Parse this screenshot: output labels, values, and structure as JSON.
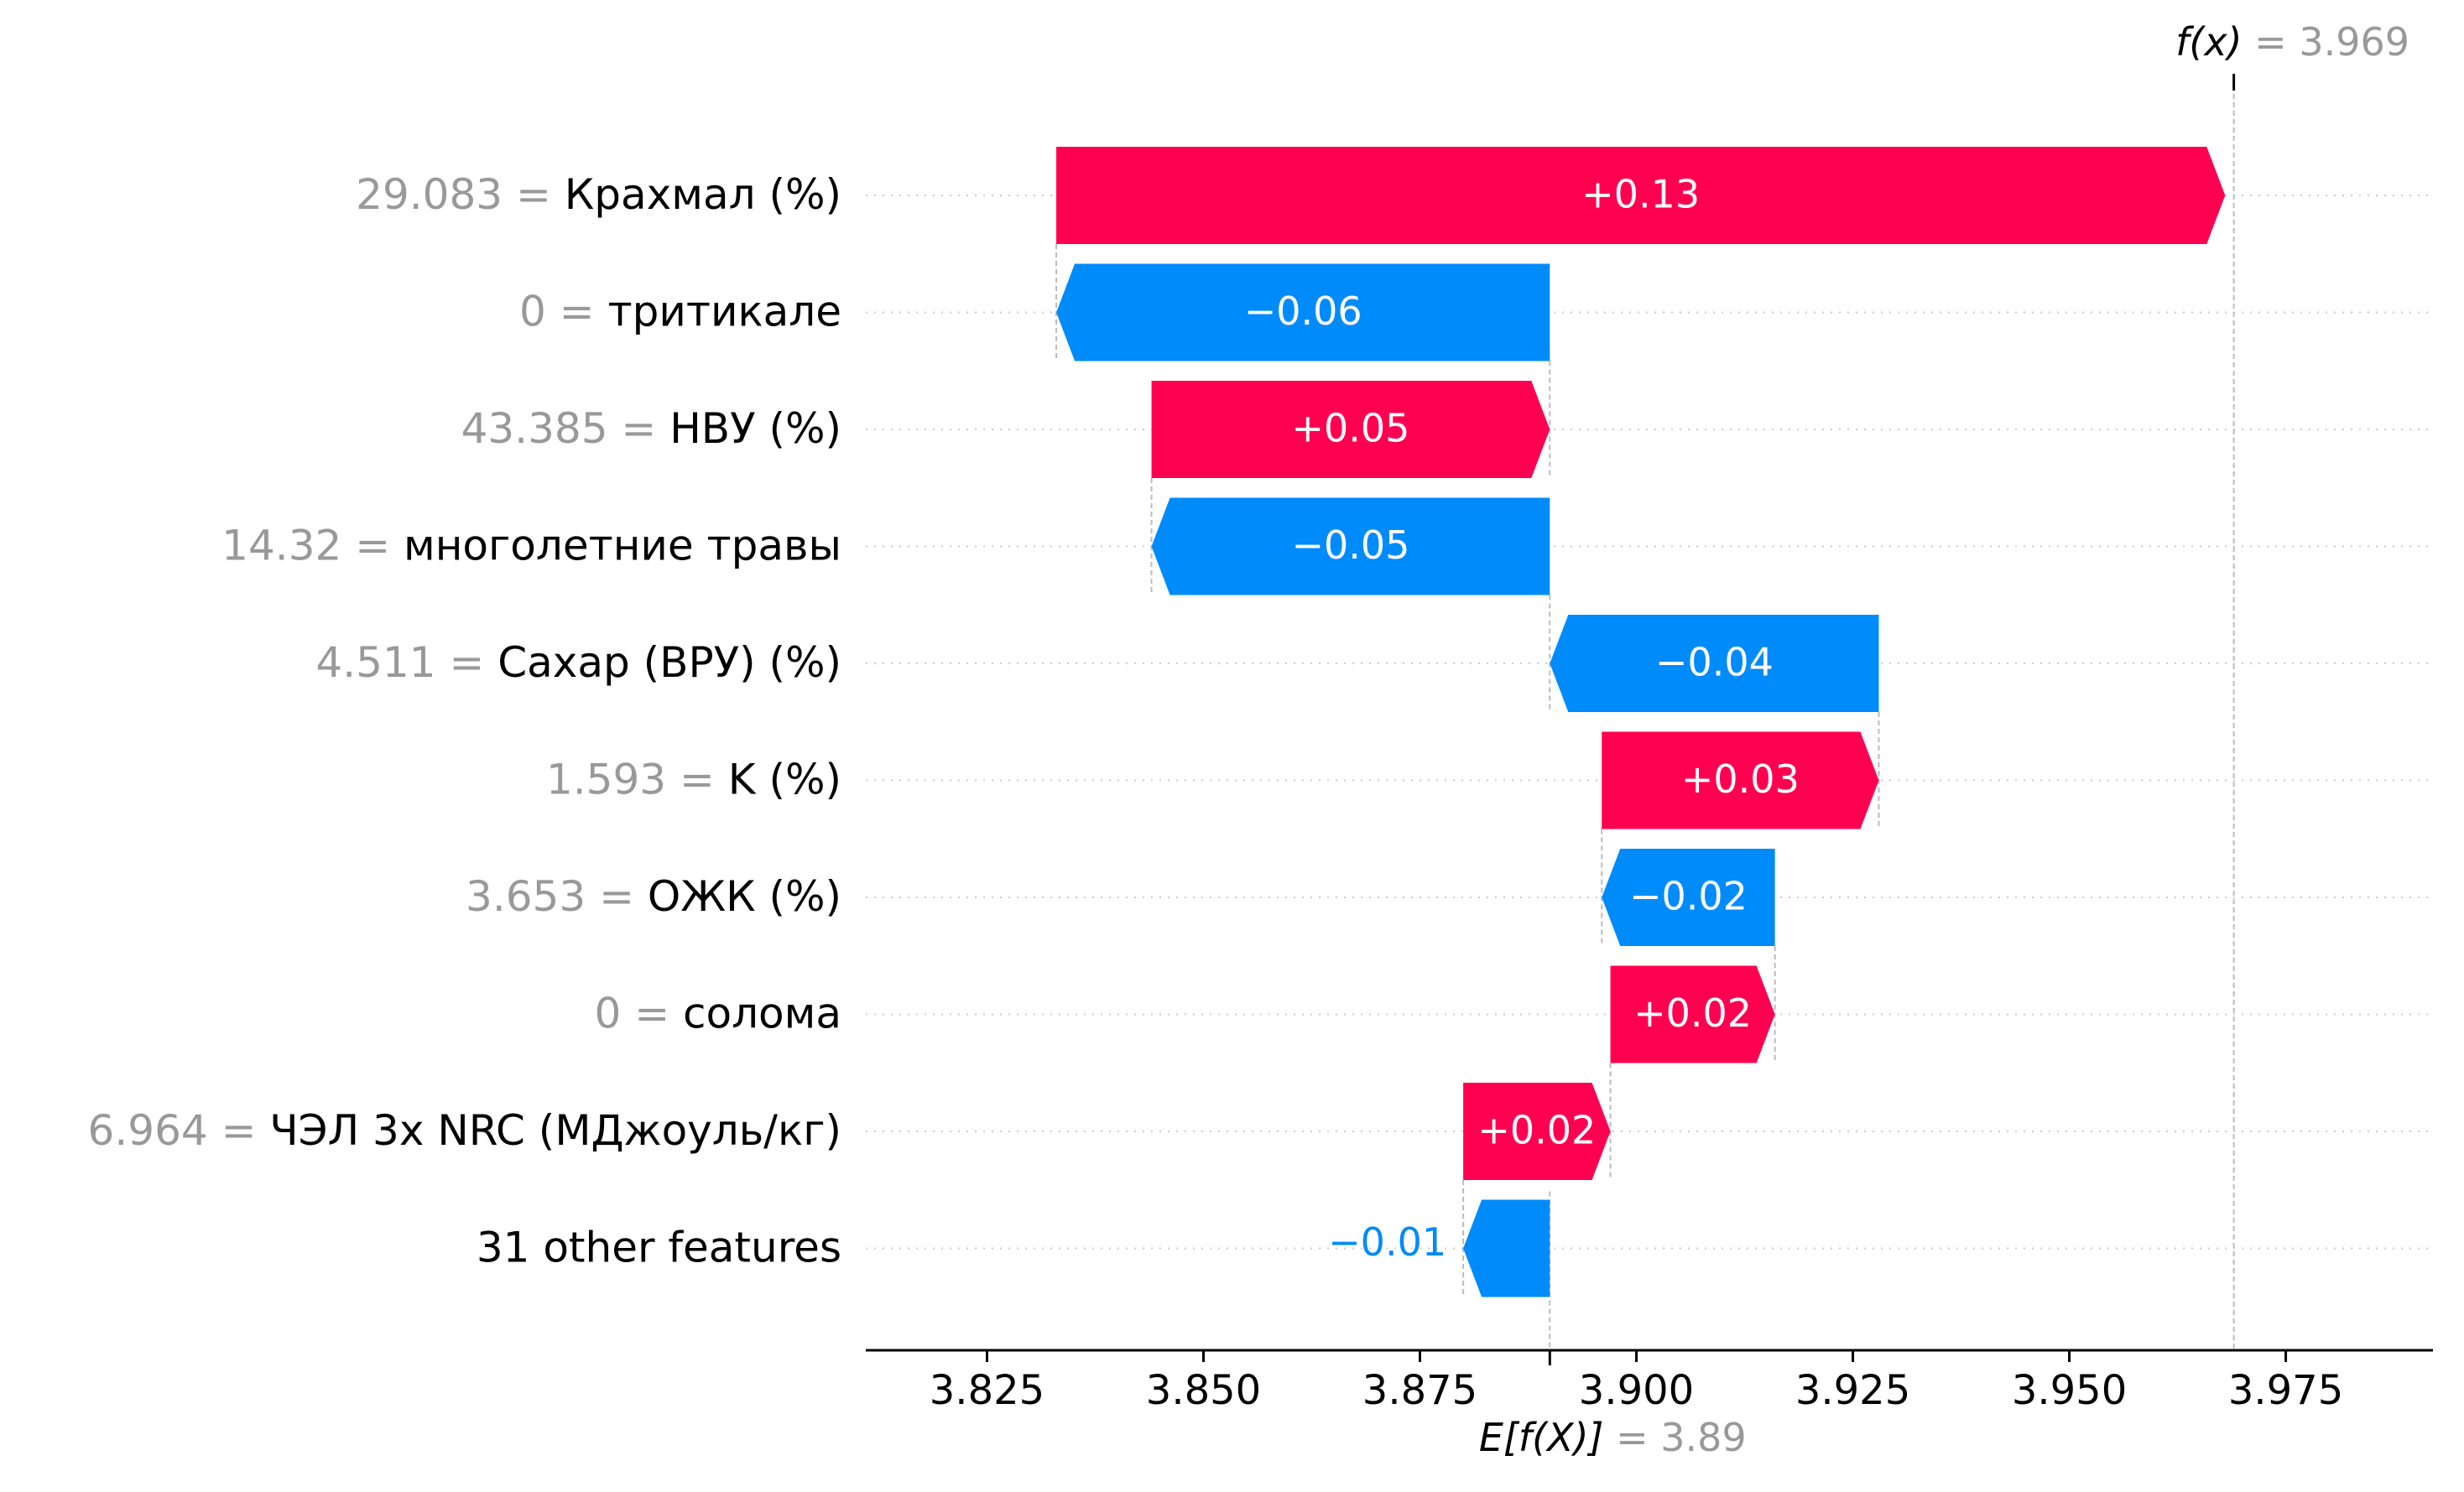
{
  "chart_data": {
    "type": "waterfall",
    "base_value": 3.89,
    "final_value": 3.969,
    "fx_label": "f(x)",
    "fx_value_text": "= 3.969",
    "efx_label": "E[f(X)]",
    "efx_value_text": "= 3.89",
    "xlim": [
      3.811,
      3.992
    ],
    "xticks": [
      3.825,
      3.85,
      3.875,
      3.9,
      3.925,
      3.95,
      3.975
    ],
    "xtick_labels": [
      "3.825",
      "3.850",
      "3.875",
      "3.900",
      "3.925",
      "3.950",
      "3.975"
    ],
    "grid": "dotted horizontal row lines",
    "colors": {
      "positive": "#ff0051",
      "negative": "#008bfb",
      "feature_value": "#999999",
      "text": "#000000",
      "axis": "#000000"
    },
    "features": [
      {
        "value_text": "29.083 =",
        "name": "Крахмал (%)",
        "contribution": 0.135,
        "label": "+0.13"
      },
      {
        "value_text": "0 =",
        "name": "тритикале",
        "contribution": -0.057,
        "label": "−0.06"
      },
      {
        "value_text": "43.385 =",
        "name": "НВУ (%)",
        "contribution": 0.046,
        "label": "+0.05"
      },
      {
        "value_text": "14.32 =",
        "name": "многолетние травы",
        "contribution": -0.046,
        "label": "−0.05"
      },
      {
        "value_text": "4.511 =",
        "name": "Сахар (ВРУ) (%)",
        "contribution": -0.038,
        "label": "−0.04"
      },
      {
        "value_text": "1.593 =",
        "name": "K (%)",
        "contribution": 0.032,
        "label": "+0.03"
      },
      {
        "value_text": "3.653 =",
        "name": "ОЖК (%)",
        "contribution": -0.02,
        "label": "−0.02"
      },
      {
        "value_text": "0 =",
        "name": "солома",
        "contribution": 0.019,
        "label": "+0.02"
      },
      {
        "value_text": "6.964 =",
        "name": "ЧЭЛ 3x NRC (МДжоуль/кг)",
        "contribution": 0.017,
        "label": "+0.02"
      },
      {
        "value_text": "",
        "name": "31 other features",
        "contribution": -0.01,
        "label": "−0.01"
      }
    ]
  }
}
